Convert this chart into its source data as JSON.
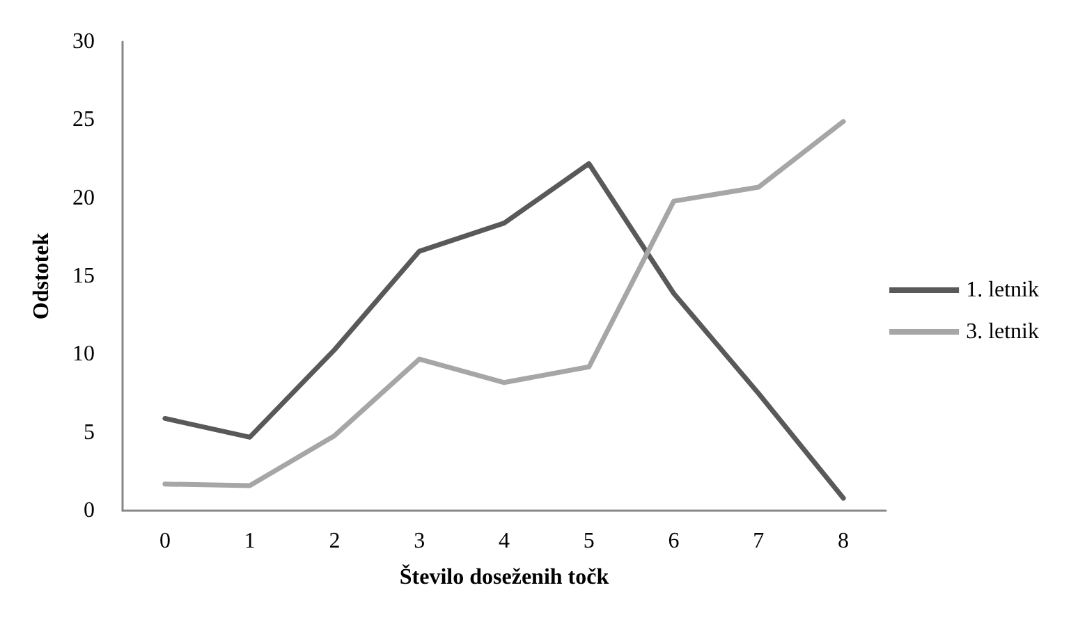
{
  "chart_data": {
    "type": "line",
    "xlabel": "Število doseženih točk",
    "ylabel": "Odstotek",
    "categories": [
      "0",
      "1",
      "2",
      "3",
      "4",
      "5",
      "6",
      "7",
      "8"
    ],
    "series": [
      {
        "name": "1. letnik",
        "color": "#595959",
        "values": [
          5.9,
          4.7,
          10.3,
          16.6,
          18.4,
          22.2,
          13.9,
          7.5,
          0.8
        ]
      },
      {
        "name": "3. letnik",
        "color": "#a6a6a6",
        "values": [
          1.7,
          1.6,
          4.8,
          9.7,
          8.2,
          9.2,
          19.8,
          20.7,
          24.9
        ]
      }
    ],
    "ylim": [
      0,
      30
    ],
    "yticks": [
      0,
      5,
      10,
      15,
      20,
      25,
      30
    ],
    "grid": false,
    "legend": "right",
    "marker": "none",
    "line_style": "solid"
  }
}
